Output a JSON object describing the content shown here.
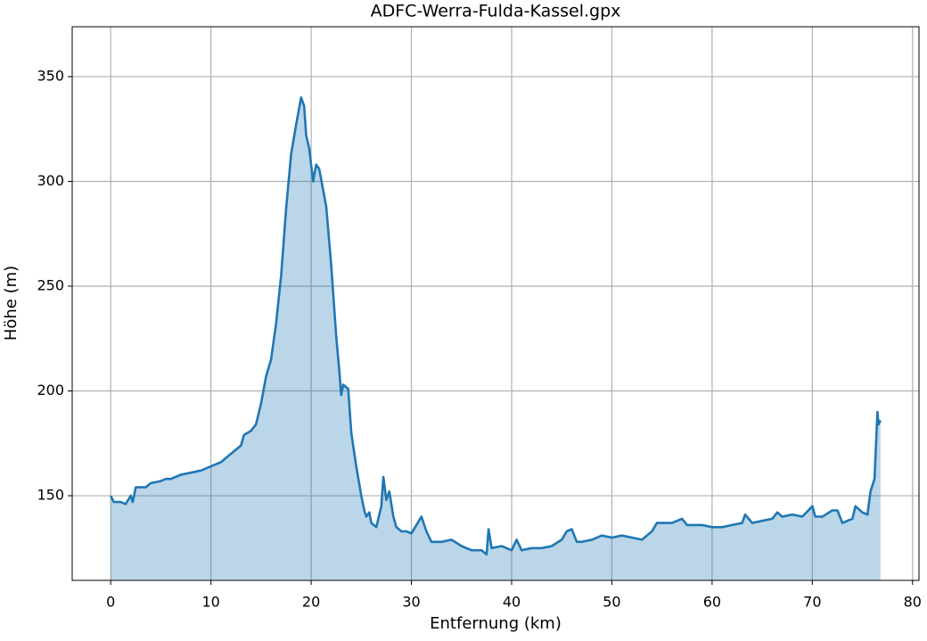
{
  "chart_data": {
    "type": "area-line",
    "title": "ADFC-Werra-Fulda-Kassel.gpx",
    "x_label": "Entfernung (km)",
    "y_label": "Höhe (m)",
    "color": "#1f77b4",
    "fill": true,
    "grid": true,
    "xlim": [
      -3.84,
      80.64
    ],
    "ylim": [
      109.6,
      373.8
    ],
    "xticks": [
      0,
      10,
      20,
      30,
      40,
      50,
      60,
      70,
      80
    ],
    "yticks": [
      150,
      200,
      250,
      300,
      350
    ],
    "x": [
      0,
      0.3,
      1,
      1.5,
      2,
      2.2,
      2.5,
      3.5,
      4,
      5,
      5.5,
      6,
      7,
      8,
      9,
      10,
      11,
      12,
      13,
      13.3,
      14,
      14.5,
      15,
      15.5,
      16,
      16.5,
      17,
      17.5,
      18,
      18.5,
      19,
      19.3,
      19.5,
      19.8,
      20.2,
      20.5,
      20.8,
      21.5,
      22,
      22.5,
      22.8,
      23,
      23.2,
      23.7,
      24,
      24.5,
      25,
      25.3,
      25.5,
      25.8,
      26,
      26.5,
      27,
      27.2,
      27.5,
      27.8,
      28.2,
      28.5,
      29,
      29.5,
      30,
      30.5,
      31,
      31.5,
      32,
      33,
      34,
      35,
      36,
      37,
      37.5,
      37.7,
      38,
      39,
      40,
      40.5,
      41,
      42,
      43,
      44,
      45,
      45.5,
      46,
      46.5,
      47,
      48,
      49,
      50,
      51,
      52,
      53,
      54,
      54.5,
      56,
      57,
      57.5,
      58,
      59,
      60,
      61,
      62,
      63,
      63.3,
      64,
      65,
      66,
      66.5,
      67,
      68,
      69,
      70,
      70.3,
      71,
      72,
      72.5,
      73,
      73.5,
      74,
      74.3,
      75,
      75.5,
      75.8,
      76.2,
      76.5,
      76.6,
      76.8
    ],
    "values": [
      150,
      147,
      147,
      146,
      150,
      147,
      154,
      154,
      156,
      157,
      158,
      158,
      160,
      161,
      162,
      164,
      166,
      170,
      174,
      179,
      181,
      184,
      194,
      207,
      215,
      232,
      255,
      287,
      313,
      327,
      340,
      336,
      322,
      316,
      300,
      308,
      306,
      288,
      260,
      226,
      210,
      198,
      203,
      201,
      180,
      164,
      150,
      143,
      140,
      142,
      137,
      135,
      145,
      159,
      148,
      152,
      140,
      135,
      133,
      133,
      132,
      136,
      140,
      133,
      128,
      128,
      129,
      126,
      124,
      124,
      122,
      134,
      125,
      126,
      124,
      129,
      124,
      125,
      125,
      126,
      129,
      133,
      134,
      128,
      128,
      129,
      131,
      130,
      131,
      130,
      129,
      133,
      137,
      137,
      139,
      136,
      136,
      136,
      135,
      135,
      136,
      137,
      141,
      137,
      138,
      139,
      142,
      140,
      141,
      140,
      145,
      140,
      140,
      143,
      143,
      137,
      138,
      139,
      145,
      142,
      141,
      152,
      158,
      190,
      184,
      186
    ]
  }
}
